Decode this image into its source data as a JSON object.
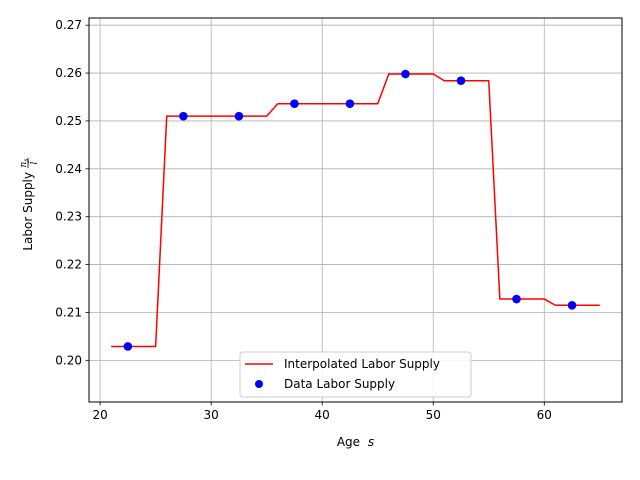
{
  "chart_data": {
    "type": "line",
    "title": "",
    "xlabel": "Age",
    "xlabel_var": "s",
    "ylabel": "Labor Supply",
    "ylabel_frac_num": "n",
    "ylabel_frac_sub": "s",
    "ylabel_frac_den": "l̃",
    "xlim": [
      19,
      67
    ],
    "ylim": [
      0.1913,
      0.2715
    ],
    "xticks": [
      20,
      30,
      40,
      50,
      60
    ],
    "yticks": [
      0.2,
      0.21,
      0.22,
      0.23,
      0.24,
      0.25,
      0.26,
      0.27
    ],
    "grid": true,
    "legend_position": "lower center",
    "series": [
      {
        "name": "Interpolated Labor Supply",
        "kind": "line",
        "color": "#ff0000",
        "x": [
          21,
          25,
          26,
          35,
          36,
          45,
          46,
          50,
          51,
          55,
          56,
          60,
          61,
          65
        ],
        "y": [
          0.2029,
          0.2029,
          0.251,
          0.251,
          0.2536,
          0.2536,
          0.2598,
          0.2598,
          0.2584,
          0.2584,
          0.2128,
          0.2128,
          0.2115,
          0.2115
        ]
      },
      {
        "name": "Data Labor Supply",
        "kind": "scatter",
        "color": "#0000ff",
        "x": [
          22.5,
          27.5,
          32.5,
          37.5,
          42.5,
          47.5,
          52.5,
          57.5,
          62.5
        ],
        "y": [
          0.2029,
          0.251,
          0.251,
          0.2536,
          0.2536,
          0.2598,
          0.2584,
          0.2128,
          0.2115
        ]
      }
    ]
  }
}
